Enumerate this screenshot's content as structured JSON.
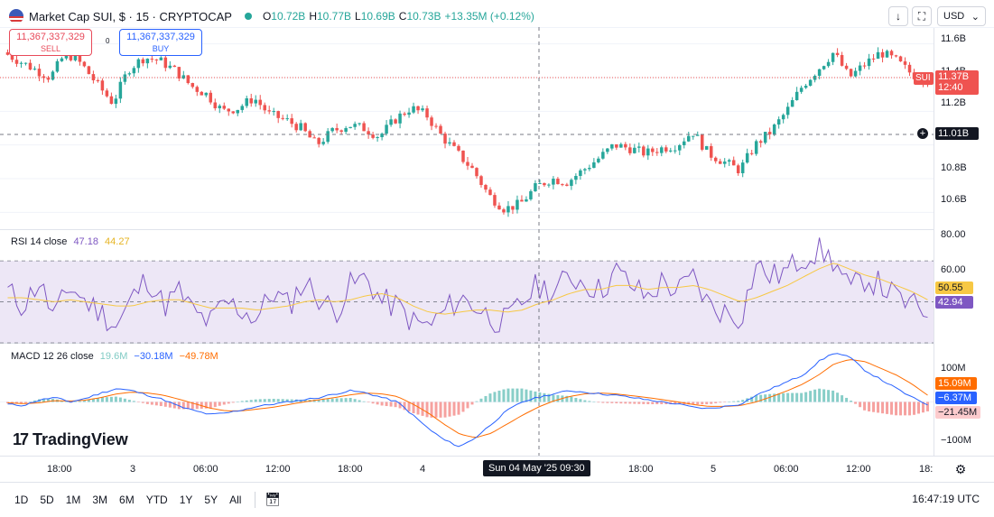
{
  "header": {
    "title": "Market Cap SUI, $ · 15 · CRYPTOCAP",
    "open_label": "O",
    "open": "10.72B",
    "high_label": "H",
    "high": "10.77B",
    "low_label": "L",
    "low": "10.69B",
    "close_label": "C",
    "close": "10.73B",
    "change": "+13.35M (+0.12%)",
    "currency": "USD",
    "currency_chevron": "chevron-down-icon",
    "download_icon": "↓",
    "fullscreen_icon": "⛶",
    "colors": {
      "up": "#26a69a",
      "down": "#ef5350",
      "accent": "#2962ff"
    }
  },
  "trade": {
    "sell_value": "11,367,337,329",
    "sell_label": "SELL",
    "spread": "0",
    "buy_value": "11,367,337,329",
    "buy_label": "BUY"
  },
  "price_pane": {
    "last_price_symbol": "SUI",
    "last_price": "11.37B",
    "countdown": "12:40",
    "crosshair_price": "11.01B",
    "y_ticks": [
      "11.6B",
      "11.4B",
      "11.2B",
      "10.8B",
      "10.6B"
    ]
  },
  "rsi_pane": {
    "title": "RSI 14 close",
    "rsi_value": "47.18",
    "ma_value": "44.27",
    "y_ticks": [
      "80.00",
      "60.00"
    ],
    "ma_tag": "50.55",
    "rsi_tag": "42.94",
    "colors": {
      "rsi": "#7e57c2",
      "ma": "#f7c844",
      "band": "#ede7f6"
    }
  },
  "macd_pane": {
    "title": "MACD 12 26 close",
    "hist_value": "19.6M",
    "macd_value": "−30.18M",
    "signal_value": "−49.78M",
    "y_ticks": [
      "100M",
      "−100M"
    ],
    "signal_tag": "15.09M",
    "macd_tag": "−6.37M",
    "hist_tag": "−21.45M",
    "colors": {
      "macd": "#2962ff",
      "signal": "#ff6d00",
      "hist_up": "#26a69a",
      "hist_down": "#ef5350"
    }
  },
  "x_axis": {
    "ticks": [
      "18:00",
      "3",
      "06:00",
      "12:00",
      "18:00",
      "4",
      "18:00",
      "5",
      "06:00",
      "12:00",
      "18:"
    ],
    "crosshair_label": "Sun 04 May '25   09:30"
  },
  "branding": {
    "logo_text": "TradingView",
    "logo_mark": "17"
  },
  "bottom": {
    "timeframes": [
      "1D",
      "5D",
      "1M",
      "3M",
      "6M",
      "YTD",
      "1Y",
      "5Y",
      "All"
    ],
    "calendar_icon": "calendar-range-icon",
    "clock": "16:47:19 UTC",
    "settings_icon": "gear-icon"
  },
  "chart_data": [
    {
      "type": "candlestick",
      "title": "Market Cap SUI, $ · 15 · CRYPTOCAP",
      "unit": "B USD",
      "y_range": [
        10.5,
        11.7
      ],
      "x_start": "May 2, 2025 ~16:00",
      "x_end": "May 5, 2025 ~16:45",
      "ohlc_last": {
        "open": 10.72,
        "high": 10.77,
        "low": 10.69,
        "close": 10.73
      },
      "close_path_approx": [
        11.55,
        11.5,
        11.45,
        11.4,
        11.55,
        11.48,
        11.36,
        11.25,
        11.45,
        11.52,
        11.5,
        11.44,
        11.35,
        11.3,
        11.2,
        11.22,
        11.28,
        11.18,
        11.15,
        11.1,
        11.0,
        11.08,
        11.12,
        11.1,
        11.05,
        11.15,
        11.22,
        11.18,
        11.05,
        10.95,
        10.85,
        10.7,
        10.62,
        10.65,
        10.75,
        10.8,
        10.78,
        10.85,
        10.92,
        11.0,
        10.98,
        10.95,
        10.98,
        11.0,
        11.08,
        10.95,
        10.9,
        10.85,
        11.0,
        11.08,
        11.2,
        11.35,
        11.45,
        11.55,
        11.4,
        11.48,
        11.55,
        11.5,
        11.42,
        11.38
      ],
      "grid": true
    },
    {
      "type": "line",
      "title": "RSI 14 close",
      "y_range": [
        30,
        85
      ],
      "band": [
        30,
        70
      ],
      "series": [
        {
          "name": "RSI",
          "values": [
            55,
            48,
            60,
            42,
            58,
            50,
            45,
            38,
            52,
            62,
            48,
            55,
            44,
            40,
            50,
            46,
            42,
            55,
            48,
            60,
            52,
            45,
            58,
            62,
            50,
            48,
            40,
            38,
            45,
            52,
            48,
            42,
            40,
            50,
            58,
            55,
            62,
            60,
            55,
            65,
            58,
            52,
            60,
            55,
            62,
            48,
            45,
            42,
            68,
            62,
            65,
            72,
            75,
            70,
            55,
            62,
            58,
            52,
            48,
            45
          ]
        },
        {
          "name": "MA",
          "values": [
            52,
            52,
            51,
            50,
            51,
            50,
            49,
            48,
            48,
            50,
            51,
            51,
            49,
            47,
            47,
            47,
            46,
            47,
            48,
            50,
            51,
            50,
            51,
            53,
            54,
            52,
            48,
            45,
            44,
            45,
            46,
            46,
            45,
            46,
            49,
            51,
            54,
            56,
            56,
            58,
            58,
            56,
            57,
            57,
            58,
            56,
            53,
            50,
            52,
            55,
            58,
            62,
            66,
            69,
            66,
            63,
            61,
            58,
            55,
            51
          ]
        }
      ],
      "rsi_value": 47.18,
      "ma_value": 44.27
    },
    {
      "type": "bar",
      "title": "MACD 12 26 close",
      "y_range": [
        -120,
        130
      ],
      "series": [
        {
          "name": "MACD",
          "values": [
            -5,
            -8,
            4,
            10,
            0,
            8,
            20,
            30,
            25,
            15,
            5,
            -10,
            -20,
            -28,
            -25,
            -18,
            -10,
            -5,
            0,
            5,
            10,
            18,
            25,
            20,
            10,
            0,
            -30,
            -60,
            -85,
            -100,
            -80,
            -50,
            -20,
            0,
            10,
            18,
            25,
            22,
            18,
            15,
            10,
            5,
            0,
            -5,
            -12,
            -15,
            -10,
            -5,
            15,
            30,
            45,
            60,
            90,
            110,
            100,
            70,
            50,
            30,
            10,
            -6
          ]
        },
        {
          "name": "Signal",
          "values": [
            -2,
            -4,
            -2,
            3,
            2,
            4,
            10,
            18,
            22,
            20,
            15,
            6,
            -4,
            -14,
            -20,
            -20,
            -16,
            -12,
            -6,
            0,
            5,
            10,
            16,
            20,
            18,
            12,
            -5,
            -25,
            -50,
            -72,
            -80,
            -70,
            -50,
            -30,
            -12,
            2,
            12,
            18,
            20,
            18,
            14,
            10,
            5,
            0,
            -6,
            -10,
            -10,
            -8,
            0,
            12,
            25,
            40,
            60,
            85,
            95,
            90,
            75,
            60,
            40,
            15
          ]
        },
        {
          "name": "Histogram",
          "values": [
            -3,
            -4,
            6,
            7,
            -2,
            4,
            10,
            12,
            3,
            -5,
            -10,
            -16,
            -16,
            -14,
            -5,
            2,
            6,
            7,
            6,
            5,
            5,
            8,
            9,
            0,
            -8,
            -12,
            -25,
            -35,
            -35,
            -28,
            0,
            20,
            30,
            30,
            22,
            16,
            13,
            4,
            -2,
            -3,
            -4,
            -5,
            -5,
            -5,
            -6,
            -5,
            0,
            3,
            15,
            18,
            20,
            20,
            30,
            25,
            5,
            -20,
            -25,
            -30,
            -30,
            -21
          ]
        }
      ]
    }
  ]
}
